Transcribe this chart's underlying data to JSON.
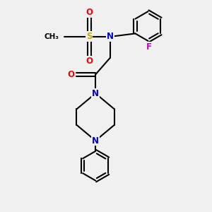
{
  "background_color": "#f0f0f0",
  "bond_color": "#000000",
  "atom_colors": {
    "N": "#0000cc",
    "O": "#ff0000",
    "F": "#cc00cc",
    "S": "#ccaa00",
    "C": "#000000"
  },
  "lw": 1.5,
  "fs": 8.5
}
